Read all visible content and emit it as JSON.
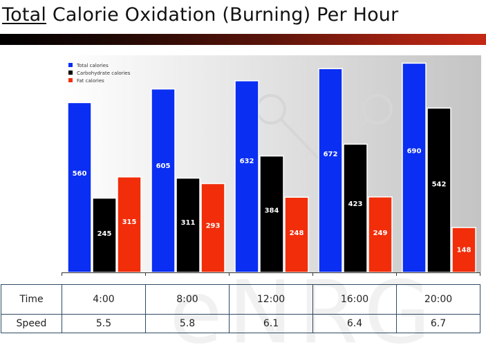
{
  "title": {
    "underlined": "Total",
    "rest": " Calorie Oxidation (Burning) Per Hour"
  },
  "watermark": "eNRG",
  "colors": {
    "total": "#0a2ef2",
    "carb": "#000000",
    "fat": "#f22d0a",
    "title_bar_start": "#000000",
    "title_bar_end": "#c42814"
  },
  "chart_data": {
    "type": "bar",
    "categories": [
      "4:00",
      "8:00",
      "12:00",
      "16:00",
      "20:00"
    ],
    "series": [
      {
        "name": "Total calories",
        "color": "#0a2ef2",
        "values": [
          560,
          605,
          632,
          672,
          690
        ]
      },
      {
        "name": "Carbohydrate calories",
        "color": "#000000",
        "values": [
          245,
          311,
          384,
          423,
          542
        ]
      },
      {
        "name": "Fat calories",
        "color": "#f22d0a",
        "values": [
          315,
          293,
          248,
          249,
          148
        ]
      }
    ],
    "ylim": [
      0,
      700
    ],
    "legend": "top-left",
    "grid": false
  },
  "table": {
    "rows": [
      {
        "label": "Time",
        "values": [
          "4:00",
          "8:00",
          "12:00",
          "16:00",
          "20:00"
        ]
      },
      {
        "label": "Speed",
        "values": [
          "5.5",
          "5.8",
          "6.1",
          "6.4",
          "6.7"
        ]
      }
    ]
  }
}
